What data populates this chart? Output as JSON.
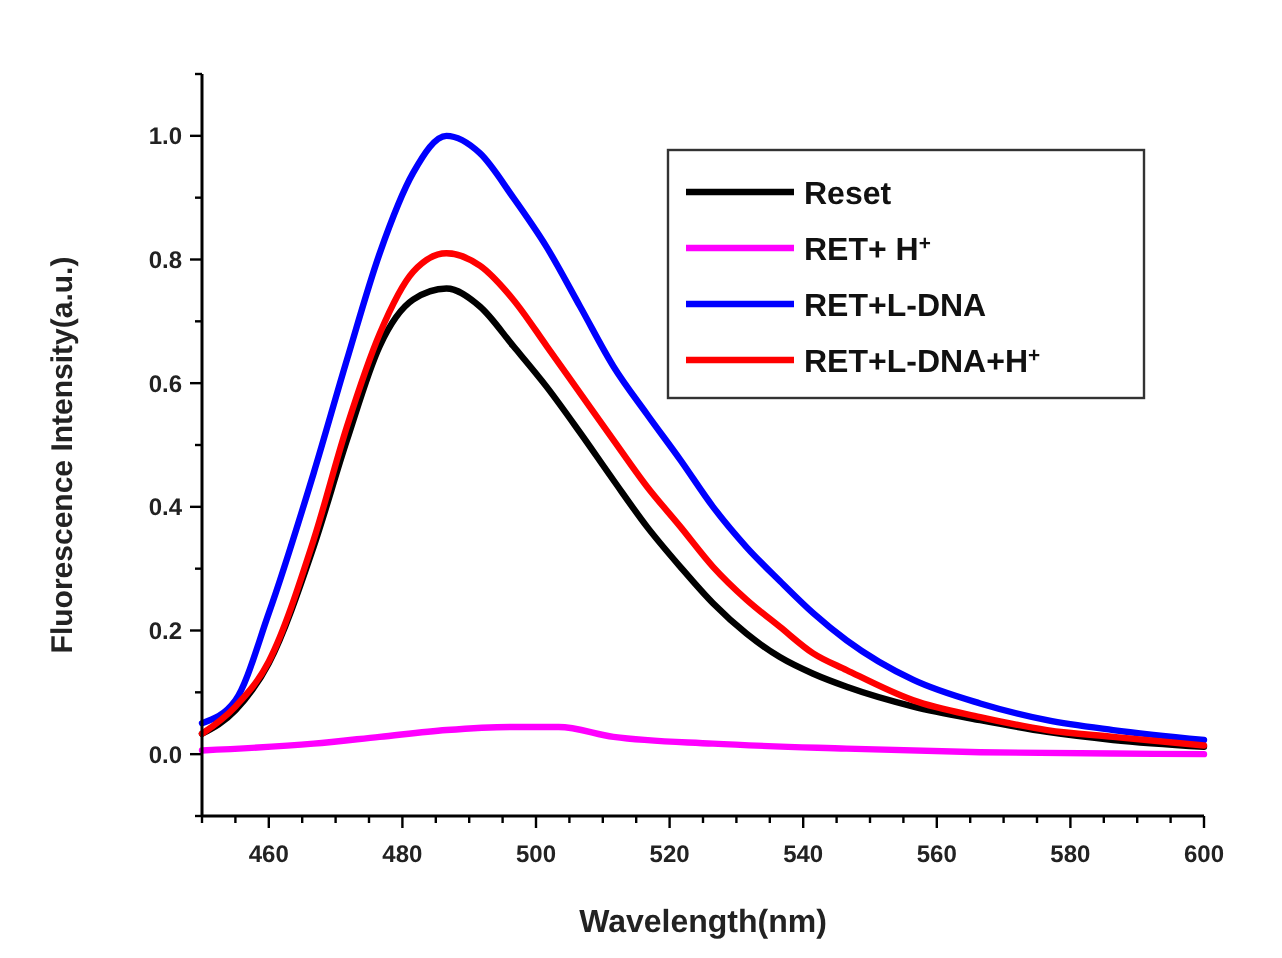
{
  "chart_data": {
    "type": "line",
    "xlabel": "Wavelength(nm)",
    "ylabel": "Fluorescence Intensity(a.u.)",
    "xlim": [
      450,
      600
    ],
    "ylim": [
      -0.1,
      1.1
    ],
    "xticks": [
      {
        "value": 450,
        "label": null
      },
      {
        "value": 455,
        "label": null
      },
      460,
      {
        "value": 465,
        "label": null
      },
      480,
      {
        "value": 470,
        "label": null
      },
      {
        "value": 475,
        "label": null
      },
      {
        "value": 485,
        "label": null
      },
      500,
      {
        "value": 490,
        "label": null
      },
      {
        "value": 495,
        "label": null
      },
      {
        "value": 505,
        "label": null
      },
      520,
      {
        "value": 510,
        "label": null
      },
      {
        "value": 515,
        "label": null
      },
      {
        "value": 525,
        "label": null
      },
      540,
      {
        "value": 530,
        "label": null
      },
      {
        "value": 535,
        "label": null
      },
      {
        "value": 545,
        "label": null
      },
      560,
      {
        "value": 550,
        "label": null
      },
      {
        "value": 555,
        "label": null
      },
      {
        "value": 565,
        "label": null
      },
      580,
      {
        "value": 570,
        "label": null
      },
      {
        "value": 575,
        "label": null
      },
      {
        "value": 585,
        "label": null
      },
      600,
      {
        "value": 590,
        "label": null
      },
      {
        "value": 595,
        "label": null
      }
    ],
    "yticks": [
      {
        "value": -0.1,
        "label": null
      },
      {
        "value": 0,
        "label": "0.0"
      },
      {
        "value": 0.1,
        "label": null
      },
      {
        "value": 0.2,
        "label": "0.2"
      },
      {
        "value": 0.3,
        "label": null
      },
      {
        "value": 0.4,
        "label": "0.4"
      },
      {
        "value": 0.5,
        "label": null
      },
      {
        "value": 0.6,
        "label": "0.6"
      },
      {
        "value": 0.7,
        "label": null
      },
      {
        "value": 0.8,
        "label": "0.8"
      },
      {
        "value": 0.9,
        "label": null
      },
      {
        "value": 1.0,
        "label": "1.0"
      },
      {
        "value": 1.1,
        "label": null
      }
    ],
    "x": [
      450,
      455,
      460,
      466.7,
      471.7,
      476.6,
      481.6,
      486.6,
      491.6,
      496.6,
      501.6,
      506.6,
      511.6,
      516.6,
      521.6,
      526.5,
      531.5,
      536.5,
      541.5,
      546.5,
      556.5,
      566.5,
      576.5,
      586.4,
      600
    ],
    "legend": "top right",
    "marker": "none",
    "line_style": "solid",
    "grid": false,
    "series": [
      {
        "name": "Reset",
        "color": "#000000",
        "values": [
          0.033,
          0.071,
          0.147,
          0.335,
          0.508,
          0.66,
          0.735,
          0.753,
          0.724,
          0.66,
          0.594,
          0.52,
          0.443,
          0.368,
          0.303,
          0.244,
          0.195,
          0.157,
          0.13,
          0.109,
          0.077,
          0.055,
          0.036,
          0.023,
          0.012
        ]
      },
      {
        "name": "RET+ H$^{+}$",
        "color": "#ff00ff",
        "x": [
          450,
          466.7,
          476.6,
          486.6,
          496.6,
          503.4,
          511.6,
          526.5,
          546.5,
          566.5,
          586.4,
          600
        ],
        "values": [
          0.006,
          0.017,
          0.028,
          0.039,
          0.044,
          0.044,
          0.028,
          0.017,
          0.009,
          0.003,
          0.001,
          0.0
        ]
      },
      {
        "name": "RET+L-DNA",
        "color": "#0000ff",
        "values": [
          0.05,
          0.087,
          0.228,
          0.454,
          0.638,
          0.81,
          0.94,
          1.0,
          0.972,
          0.9,
          0.82,
          0.724,
          0.627,
          0.55,
          0.476,
          0.4,
          0.335,
          0.28,
          0.228,
          0.184,
          0.12,
          0.082,
          0.055,
          0.039,
          0.023
        ]
      },
      {
        "name": "RET+L-DNA+H$^{+}$",
        "color": "#ff0000",
        "values": [
          0.033,
          0.077,
          0.15,
          0.346,
          0.53,
          0.68,
          0.78,
          0.81,
          0.79,
          0.735,
          0.66,
          0.584,
          0.508,
          0.433,
          0.368,
          0.303,
          0.25,
          0.206,
          0.163,
          0.136,
          0.087,
          0.06,
          0.039,
          0.028,
          0.014
        ]
      }
    ]
  }
}
